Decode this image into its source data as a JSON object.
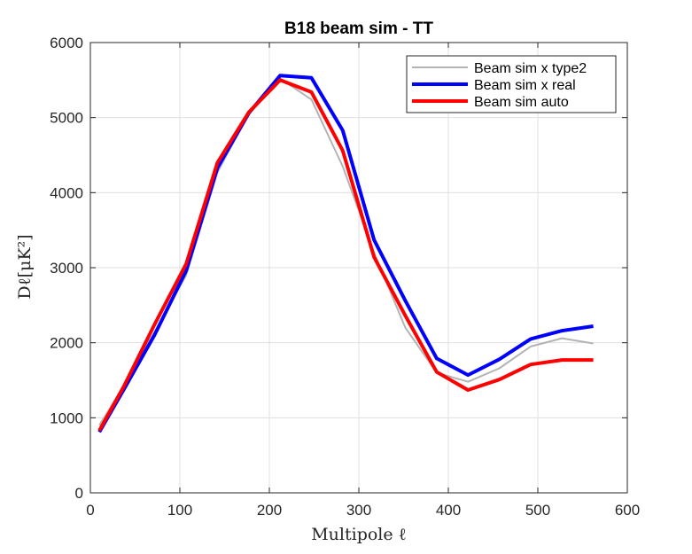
{
  "chart_data": {
    "type": "line",
    "title": "B18 beam sim - TT",
    "xlabel": "Multipole ℓ",
    "ylabel": "Dℓ[μK²]",
    "xlim": [
      0,
      600
    ],
    "ylim": [
      0,
      6000
    ],
    "xticks": [
      0,
      100,
      200,
      300,
      400,
      500,
      600
    ],
    "yticks": [
      0,
      1000,
      2000,
      3000,
      4000,
      5000,
      6000
    ],
    "grid": true,
    "legend_position": "top-right",
    "x": [
      10,
      37,
      72,
      107,
      142,
      177,
      212,
      247,
      282,
      317,
      352,
      387,
      422,
      457,
      492,
      527,
      562
    ],
    "series": [
      {
        "name": "Beam sim x type2",
        "color": "#b3b3b3",
        "values": [
          900,
          1420,
          2150,
          2900,
          4270,
          5050,
          5520,
          5240,
          4350,
          3200,
          2200,
          1600,
          1480,
          1660,
          1950,
          2060,
          1990
        ]
      },
      {
        "name": "Beam sim x real",
        "color": "#0000ff",
        "values": [
          810,
          1370,
          2110,
          2960,
          4330,
          5060,
          5560,
          5530,
          4830,
          3370,
          2560,
          1790,
          1570,
          1780,
          2050,
          2160,
          2220
        ]
      },
      {
        "name": "Beam sim auto",
        "color": "#ff0000",
        "values": [
          830,
          1410,
          2250,
          3050,
          4400,
          5070,
          5500,
          5340,
          4560,
          3140,
          2360,
          1610,
          1370,
          1510,
          1710,
          1770,
          1770
        ]
      }
    ]
  }
}
